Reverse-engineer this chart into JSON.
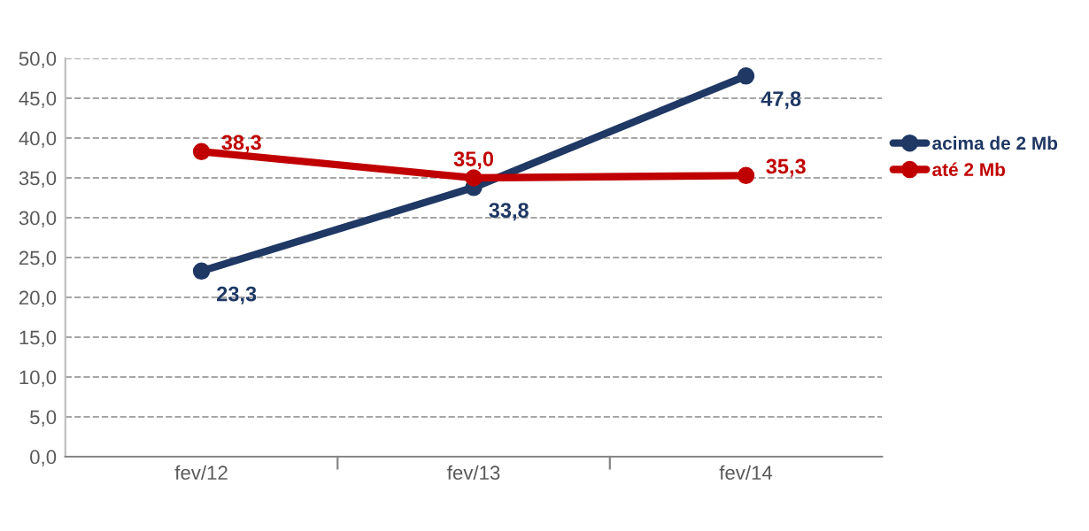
{
  "chart_data": {
    "type": "line",
    "categories": [
      "fev/12",
      "fev/13",
      "fev/14"
    ],
    "series": [
      {
        "name": "acima de 2 Mb",
        "color": "#1f3864",
        "values": [
          23.3,
          33.8,
          47.8
        ],
        "value_labels": [
          "23,3",
          "33,8",
          "47,8"
        ]
      },
      {
        "name": "até 2 Mb",
        "color": "#c00000",
        "values": [
          38.3,
          35.0,
          35.3
        ],
        "value_labels": [
          "38,3",
          "35,0",
          "35,3"
        ]
      }
    ],
    "ylim": [
      0,
      50
    ],
    "yticks": [
      {
        "value": 0,
        "label": "0,0"
      },
      {
        "value": 5,
        "label": "5,0"
      },
      {
        "value": 10,
        "label": "10,0"
      },
      {
        "value": 15,
        "label": "15,0"
      },
      {
        "value": 20,
        "label": "20,0"
      },
      {
        "value": 25,
        "label": "25,0"
      },
      {
        "value": 30,
        "label": "30,0"
      },
      {
        "value": 35,
        "label": "35,0"
      },
      {
        "value": 40,
        "label": "40,0"
      },
      {
        "value": 45,
        "label": "45,0"
      },
      {
        "value": 50,
        "label": "50,0"
      }
    ],
    "grid": "y",
    "legend": "right",
    "marker": "circle",
    "line_style": "solid"
  }
}
